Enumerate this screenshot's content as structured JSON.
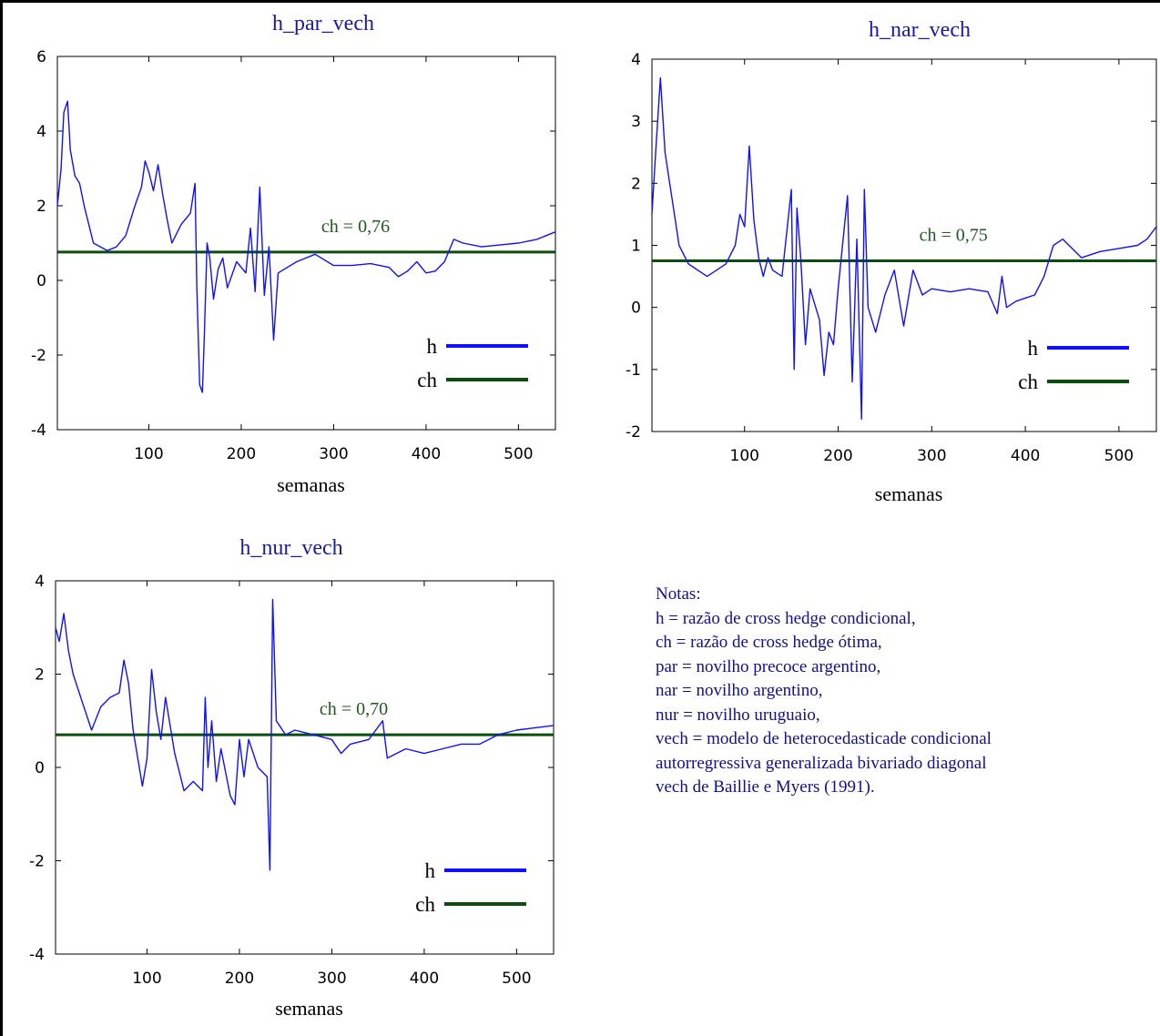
{
  "notes": {
    "heading": "Notas:",
    "lines": [
      "h = razão de cross hedge condicional,",
      "ch = razão de cross hedge ótima,",
      "par = novilho precoce argentino,",
      "nar = novilho argentino,",
      "nur = novilho uruguaio,",
      "vech = modelo de heterocedasticade condicional",
      "autorregressiva generalizada bivariado diagonal",
      "vech de Baillie e Myers (1991)."
    ]
  },
  "colors": {
    "h": "#1010ff",
    "ch": "#0b4d0b",
    "title": "#1a1aa6",
    "ch_label": "#1f5a1f"
  },
  "chart_data": [
    {
      "type": "line",
      "title": "h_par_vech",
      "xlabel": "semanas",
      "ylabel": "",
      "xlim": [
        1,
        540
      ],
      "ylim": [
        -4,
        6
      ],
      "xticks": [
        100,
        200,
        300,
        400,
        500
      ],
      "yticks": [
        -4,
        -2,
        0,
        2,
        4,
        6
      ],
      "ch_value": 0.76,
      "ch_label": "ch = 0,76",
      "legend": [
        "h",
        "ch"
      ],
      "legend_position": "bottom-right",
      "series": [
        {
          "name": "h",
          "x": [
            1,
            5,
            8,
            12,
            15,
            20,
            25,
            30,
            40,
            55,
            65,
            75,
            85,
            92,
            96,
            100,
            105,
            110,
            115,
            120,
            125,
            135,
            145,
            150,
            152,
            155,
            158,
            160,
            163,
            166,
            170,
            175,
            180,
            185,
            195,
            205,
            210,
            215,
            220,
            225,
            230,
            235,
            240,
            260,
            280,
            300,
            320,
            340,
            360,
            370,
            380,
            390,
            400,
            410,
            420,
            430,
            440,
            460,
            480,
            500,
            520,
            530,
            540
          ],
          "values": [
            2.0,
            3.0,
            4.5,
            4.8,
            3.5,
            2.8,
            2.6,
            2.0,
            1.0,
            0.8,
            0.9,
            1.2,
            2.0,
            2.5,
            3.2,
            2.9,
            2.4,
            3.1,
            2.3,
            1.6,
            1.0,
            1.5,
            1.8,
            2.6,
            -0.2,
            -2.8,
            -3.0,
            -1.5,
            1.0,
            0.6,
            -0.5,
            0.3,
            0.6,
            -0.2,
            0.5,
            0.2,
            1.4,
            -0.3,
            2.5,
            -0.4,
            0.9,
            -1.6,
            0.2,
            0.5,
            0.7,
            0.4,
            0.4,
            0.45,
            0.35,
            0.1,
            0.25,
            0.5,
            0.2,
            0.25,
            0.5,
            1.1,
            1.0,
            0.9,
            0.95,
            1.0,
            1.1,
            1.2,
            1.3
          ]
        },
        {
          "name": "ch",
          "values": [
            0.76
          ]
        }
      ]
    },
    {
      "type": "line",
      "title": "h_nar_vech",
      "xlabel": "semanas",
      "ylabel": "",
      "xlim": [
        1,
        540
      ],
      "ylim": [
        -2,
        4
      ],
      "xticks": [
        100,
        200,
        300,
        400,
        500
      ],
      "yticks": [
        -2,
        -1,
        0,
        1,
        2,
        3,
        4
      ],
      "ch_value": 0.75,
      "ch_label": "ch = 0,75",
      "legend": [
        "h",
        "ch"
      ],
      "legend_position": "bottom-right",
      "series": [
        {
          "name": "h",
          "x": [
            1,
            5,
            10,
            15,
            20,
            25,
            30,
            40,
            50,
            60,
            70,
            80,
            90,
            95,
            100,
            105,
            110,
            115,
            120,
            125,
            130,
            140,
            150,
            153,
            156,
            160,
            165,
            170,
            180,
            185,
            190,
            195,
            200,
            210,
            215,
            220,
            225,
            228,
            232,
            240,
            250,
            260,
            270,
            280,
            290,
            300,
            320,
            340,
            360,
            370,
            375,
            380,
            390,
            400,
            410,
            420,
            430,
            440,
            460,
            480,
            500,
            520,
            530,
            540
          ],
          "values": [
            1.5,
            2.5,
            3.7,
            2.5,
            2.0,
            1.5,
            1.0,
            0.7,
            0.6,
            0.5,
            0.6,
            0.7,
            1.0,
            1.5,
            1.3,
            2.6,
            1.4,
            0.8,
            0.5,
            0.8,
            0.6,
            0.5,
            1.9,
            -1.0,
            1.6,
            0.8,
            -0.6,
            0.3,
            -0.2,
            -1.1,
            -0.4,
            -0.6,
            0.3,
            1.8,
            -1.2,
            1.1,
            -1.8,
            1.9,
            0.0,
            -0.4,
            0.2,
            0.6,
            -0.3,
            0.6,
            0.2,
            0.3,
            0.25,
            0.3,
            0.25,
            -0.1,
            0.5,
            0.0,
            0.1,
            0.15,
            0.2,
            0.5,
            1.0,
            1.1,
            0.8,
            0.9,
            0.95,
            1.0,
            1.1,
            1.3
          ]
        },
        {
          "name": "ch",
          "values": [
            0.75
          ]
        }
      ]
    },
    {
      "type": "line",
      "title": "h_nur_vech",
      "xlabel": "semanas",
      "ylabel": "",
      "xlim": [
        1,
        540
      ],
      "ylim": [
        -4,
        4
      ],
      "xticks": [
        100,
        200,
        300,
        400,
        500
      ],
      "yticks": [
        -4,
        -2,
        0,
        2,
        4
      ],
      "ch_value": 0.7,
      "ch_label": "ch = 0,70",
      "legend": [
        "h",
        "ch"
      ],
      "legend_position": "bottom-right",
      "series": [
        {
          "name": "h",
          "x": [
            1,
            5,
            10,
            15,
            20,
            30,
            40,
            50,
            60,
            70,
            75,
            80,
            85,
            90,
            95,
            100,
            105,
            110,
            115,
            120,
            130,
            140,
            150,
            160,
            163,
            166,
            170,
            175,
            180,
            190,
            195,
            200,
            205,
            210,
            220,
            230,
            233,
            236,
            240,
            250,
            260,
            280,
            300,
            310,
            320,
            340,
            355,
            360,
            370,
            380,
            400,
            420,
            440,
            460,
            480,
            500,
            520,
            540
          ],
          "values": [
            3.0,
            2.7,
            3.3,
            2.5,
            2.0,
            1.4,
            0.8,
            1.3,
            1.5,
            1.6,
            2.3,
            1.8,
            0.8,
            0.2,
            -0.4,
            0.2,
            2.1,
            1.2,
            0.6,
            1.5,
            0.3,
            -0.5,
            -0.3,
            -0.5,
            1.5,
            0.0,
            1.0,
            -0.3,
            0.4,
            -0.6,
            -0.8,
            0.6,
            -0.2,
            0.6,
            0.0,
            -0.2,
            -2.2,
            3.6,
            1.0,
            0.7,
            0.8,
            0.7,
            0.6,
            0.3,
            0.5,
            0.6,
            1.0,
            0.2,
            0.3,
            0.4,
            0.3,
            0.4,
            0.5,
            0.5,
            0.7,
            0.8,
            0.85,
            0.9
          ]
        },
        {
          "name": "ch",
          "values": [
            0.7
          ]
        }
      ]
    }
  ]
}
